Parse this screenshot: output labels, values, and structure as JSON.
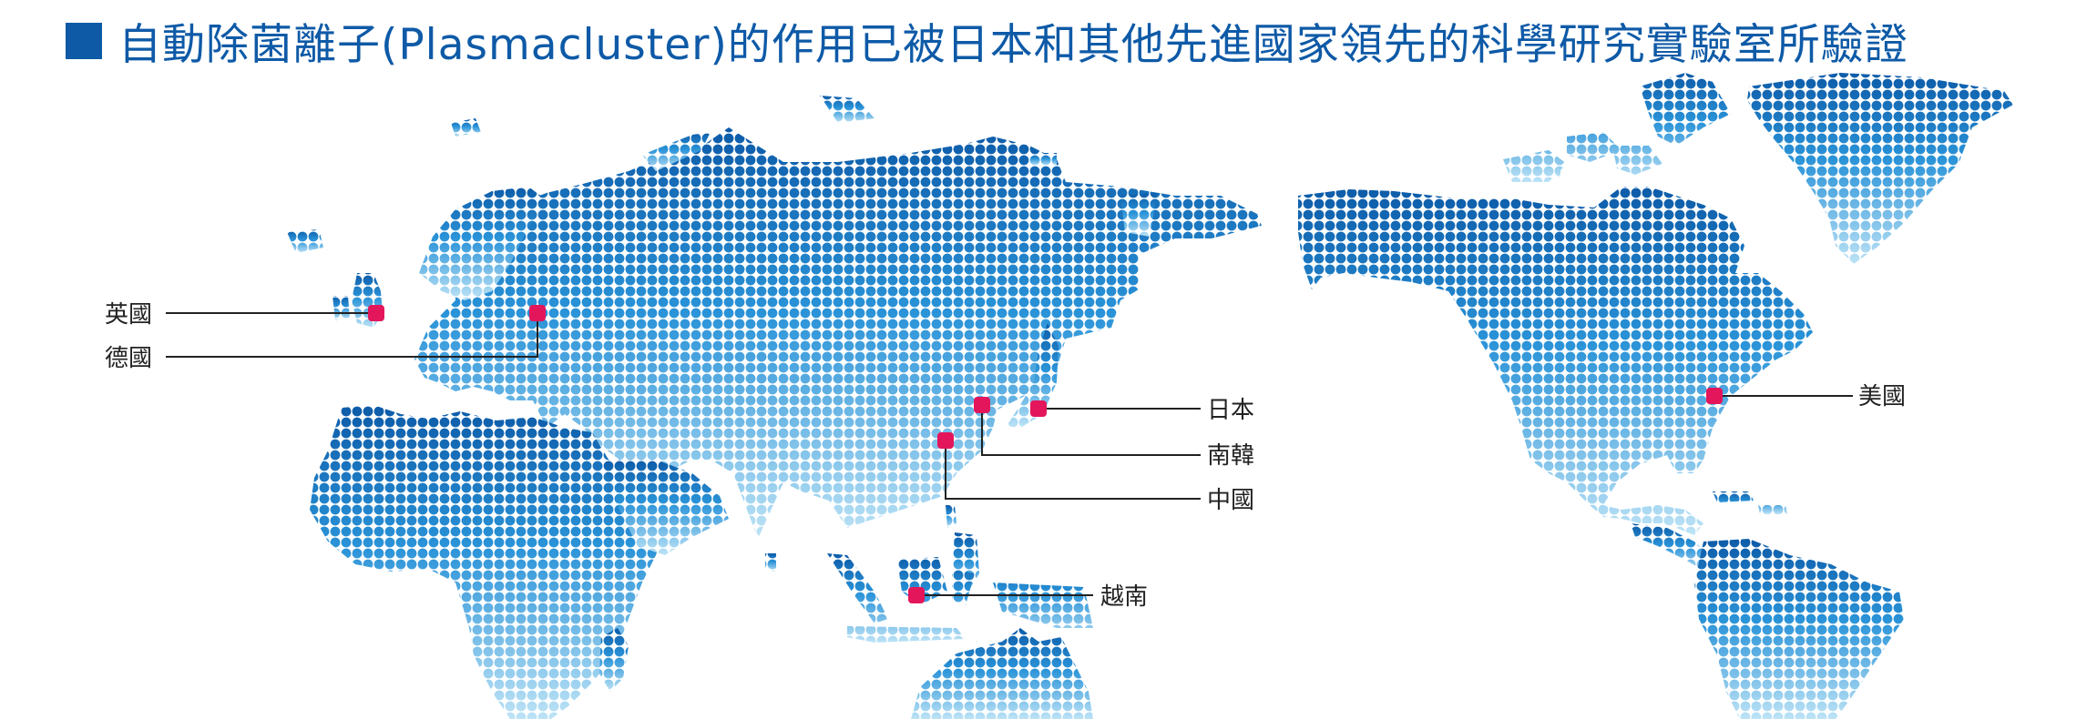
{
  "title": "自動除菌離子(Plasmacluster)的作用已被日本和其他先進國家領先的科學研究實驗室所驗證",
  "colors": {
    "title": "#0e5aa7",
    "marker": "#e3165b",
    "dot_north": "#0d5ba8",
    "dot_south": "#bde3f6",
    "leader_line": "#222222"
  },
  "locations": [
    {
      "id": "uk",
      "label": "英國"
    },
    {
      "id": "germany",
      "label": "德國"
    },
    {
      "id": "japan",
      "label": "日本"
    },
    {
      "id": "korea",
      "label": "南韓"
    },
    {
      "id": "china",
      "label": "中國"
    },
    {
      "id": "vietnam",
      "label": "越南"
    },
    {
      "id": "usa",
      "label": "美國"
    }
  ]
}
